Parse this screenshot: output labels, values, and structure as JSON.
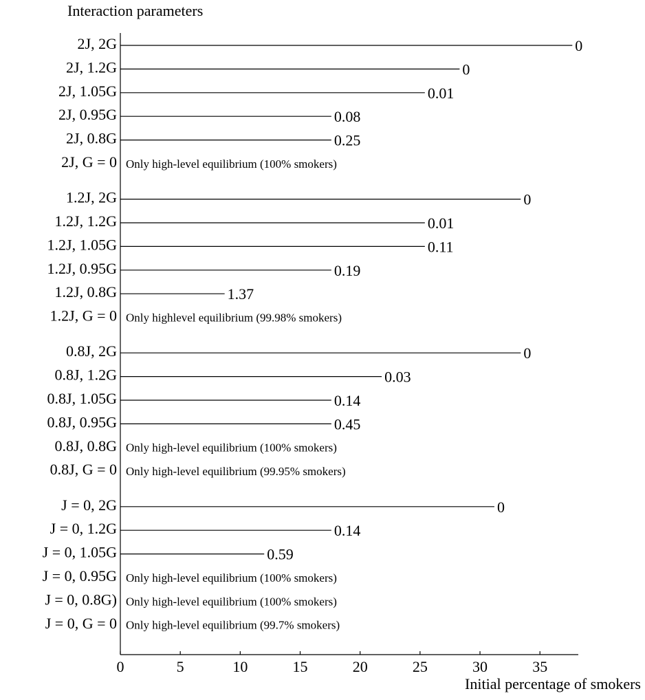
{
  "chart_data": {
    "type": "bar",
    "orientation": "horizontal",
    "title": "Interaction parameters",
    "x_label": "Initial percentage of smokers",
    "color": "#000000",
    "categories": [
      "2J, 2G",
      "2J, 1.2G",
      "2J, 1.05G",
      "2J, 0.95G",
      "2J, 0.8G",
      "2J, G = 0",
      null,
      "1.2J, 2G",
      "1.2J, 1.2G",
      "1.2J, 1.05G",
      "1.2J, 0.95G",
      "1.2J, 0.8G",
      "1.2J, G = 0",
      null,
      "0.8J, 2G",
      "0.8J, 1.2G",
      "0.8J, 1.05G",
      "0.8J, 0.95G",
      "0.8J, 0.8G",
      "0.8J, G = 0",
      null,
      "J = 0, 2G",
      "J = 0, 1.2G",
      "J = 0, 1.05G",
      "J = 0, 0.95G",
      "J = 0, 0.8G)",
      "J = 0, G = 0"
    ],
    "values": [
      37.7,
      28.3,
      25.4,
      17.6,
      17.6,
      null,
      null,
      33.4,
      25.4,
      25.4,
      17.6,
      8.7,
      null,
      null,
      33.4,
      21.8,
      17.6,
      17.6,
      null,
      null,
      null,
      31.2,
      17.6,
      12.0,
      null,
      null,
      null
    ],
    "annotations": [
      "0",
      "0",
      "0.01",
      "0.08",
      "0.25",
      "Only high-level equilibrium (100% smokers)",
      null,
      "0",
      "0.01",
      "0.11",
      "0.19",
      "1.37",
      "Only highlevel equilibrium (99.98% smokers)",
      null,
      "0",
      "0.03",
      "0.14",
      "0.45",
      "Only high-level equilibrium (100% smokers)",
      "Only high-level equilibrium (99.95% smokers)",
      null,
      "0",
      "0.14",
      "0.59",
      "Only high-level equilibrium (100% smokers)",
      "Only high-level equilibrium (100% smokers)",
      "Only high-level equilibrium (99.7% smokers)"
    ],
    "xlim": [
      0,
      38.2
    ],
    "xticks": [
      0,
      5,
      10,
      15,
      20,
      25,
      30,
      35
    ]
  }
}
